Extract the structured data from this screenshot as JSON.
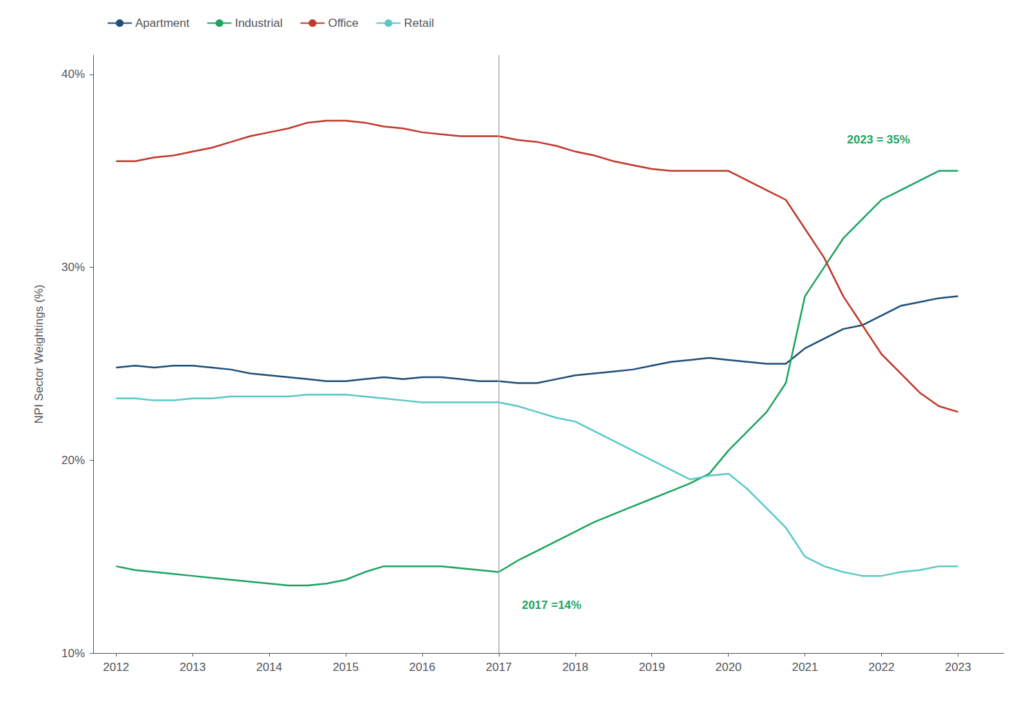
{
  "chart_data": {
    "type": "line",
    "title": "",
    "ylabel": "NPI Sector Weightings (%)",
    "x": [
      2012.0,
      2012.25,
      2012.5,
      2012.75,
      2013.0,
      2013.25,
      2013.5,
      2013.75,
      2014.0,
      2014.25,
      2014.5,
      2014.75,
      2015.0,
      2015.25,
      2015.5,
      2015.75,
      2016.0,
      2016.25,
      2016.5,
      2016.75,
      2017.0,
      2017.25,
      2017.5,
      2017.75,
      2018.0,
      2018.25,
      2018.5,
      2018.75,
      2019.0,
      2019.25,
      2019.5,
      2019.75,
      2020.0,
      2020.25,
      2020.5,
      2020.75,
      2021.0,
      2021.25,
      2021.5,
      2021.75,
      2022.0,
      2022.25,
      2022.5,
      2022.75,
      2023.0
    ],
    "series": [
      {
        "name": "Apartment",
        "color": "#1f4e79",
        "values": [
          24.8,
          24.9,
          24.8,
          24.9,
          24.9,
          24.8,
          24.7,
          24.5,
          24.4,
          24.3,
          24.2,
          24.1,
          24.1,
          24.2,
          24.3,
          24.2,
          24.3,
          24.3,
          24.2,
          24.1,
          24.1,
          24.0,
          24.0,
          24.2,
          24.4,
          24.5,
          24.6,
          24.7,
          24.9,
          25.1,
          25.2,
          25.3,
          25.2,
          25.1,
          25.0,
          25.0,
          25.8,
          26.3,
          26.8,
          27.0,
          27.5,
          28.0,
          28.2,
          28.4,
          28.5
        ]
      },
      {
        "name": "Industrial",
        "color": "#1da462",
        "values": [
          14.5,
          14.3,
          14.2,
          14.1,
          14.0,
          13.9,
          13.8,
          13.7,
          13.6,
          13.5,
          13.5,
          13.6,
          13.8,
          14.2,
          14.5,
          14.5,
          14.5,
          14.5,
          14.4,
          14.3,
          14.2,
          14.8,
          15.3,
          15.8,
          16.3,
          16.8,
          17.2,
          17.6,
          18.0,
          18.4,
          18.8,
          19.3,
          20.5,
          21.5,
          22.5,
          24.0,
          28.5,
          30.0,
          31.5,
          32.5,
          33.5,
          34.0,
          34.5,
          35.0,
          35.0
        ]
      },
      {
        "name": "Office",
        "color": "#c0392b",
        "values": [
          35.5,
          35.5,
          35.7,
          35.8,
          36.0,
          36.2,
          36.5,
          36.8,
          37.0,
          37.2,
          37.5,
          37.6,
          37.6,
          37.5,
          37.3,
          37.2,
          37.0,
          36.9,
          36.8,
          36.8,
          36.8,
          36.6,
          36.5,
          36.3,
          36.0,
          35.8,
          35.5,
          35.3,
          35.1,
          35.0,
          35.0,
          35.0,
          35.0,
          34.5,
          34.0,
          33.5,
          32.0,
          30.5,
          28.5,
          27.0,
          25.5,
          24.5,
          23.5,
          22.8,
          22.5
        ]
      },
      {
        "name": "Retail",
        "color": "#5bc8c8",
        "values": [
          23.2,
          23.2,
          23.1,
          23.1,
          23.2,
          23.2,
          23.3,
          23.3,
          23.3,
          23.3,
          23.4,
          23.4,
          23.4,
          23.3,
          23.2,
          23.1,
          23.0,
          23.0,
          23.0,
          23.0,
          23.0,
          22.8,
          22.5,
          22.2,
          22.0,
          21.5,
          21.0,
          20.5,
          20.0,
          19.5,
          19.0,
          19.2,
          19.3,
          18.5,
          17.5,
          16.5,
          15.0,
          14.5,
          14.2,
          14.0,
          14.0,
          14.2,
          14.3,
          14.5,
          14.5
        ]
      }
    ],
    "xlim": [
      2011.7,
      2023.6
    ],
    "xticks": [
      2012,
      2013,
      2014,
      2015,
      2016,
      2017,
      2018,
      2019,
      2020,
      2021,
      2022,
      2023
    ],
    "ylim": [
      10,
      41
    ],
    "yticks": [
      {
        "value": 10,
        "label": "10%"
      },
      {
        "value": 20,
        "label": "20%"
      },
      {
        "value": 30,
        "label": "30%"
      },
      {
        "value": 40,
        "label": "40%"
      }
    ],
    "vlines": [
      {
        "x": 2017.0,
        "color": "#b0b0b0"
      }
    ],
    "annotations": [
      {
        "text": "2017 =14%",
        "x": 2017.3,
        "y": 12.8,
        "color": "#1da462"
      },
      {
        "text": "2023 = 35%",
        "x": 2021.55,
        "y": 36.3,
        "color": "#1da462"
      }
    ],
    "grid": false,
    "legend": "upper left"
  }
}
